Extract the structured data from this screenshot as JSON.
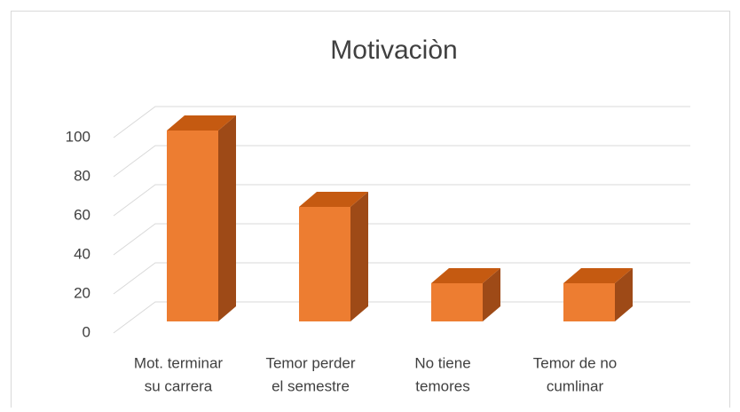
{
  "chart_data": {
    "type": "bar3d",
    "title": "Motivaciòn",
    "categories": [
      [
        "Mot. terminar",
        "su carrera"
      ],
      [
        "Temor perder",
        "el semestre"
      ],
      [
        "No tiene",
        "temores"
      ],
      [
        "Temor de no",
        "cumlinar"
      ]
    ],
    "values": [
      100,
      60,
      20,
      20
    ],
    "color": "#ed7d31",
    "ylim": [
      0,
      100
    ],
    "yticks": [
      0,
      20,
      40,
      60,
      80,
      100
    ],
    "grid": true
  }
}
